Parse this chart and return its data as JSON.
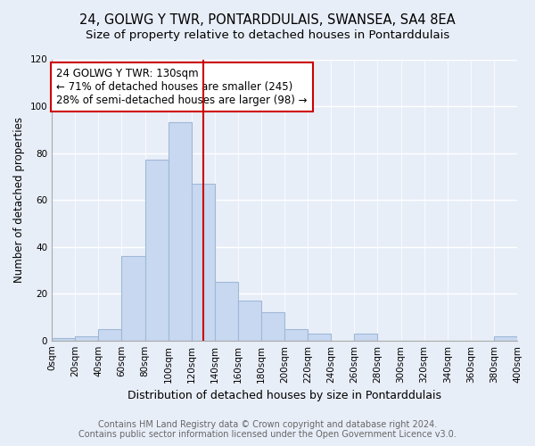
{
  "title": "24, GOLWG Y TWR, PONTARDDULAIS, SWANSEA, SA4 8EA",
  "subtitle": "Size of property relative to detached houses in Pontarddulais",
  "xlabel": "Distribution of detached houses by size in Pontarddulais",
  "ylabel": "Number of detached properties",
  "footnote1": "Contains HM Land Registry data © Crown copyright and database right 2024.",
  "footnote2": "Contains public sector information licensed under the Open Government Licence v3.0.",
  "bin_edges": [
    0,
    20,
    40,
    60,
    80,
    100,
    120,
    140,
    160,
    180,
    200,
    220,
    240,
    260,
    280,
    300,
    320,
    340,
    360,
    380,
    400
  ],
  "bar_heights": [
    1,
    2,
    5,
    36,
    77,
    93,
    67,
    25,
    17,
    12,
    5,
    3,
    0,
    3,
    0,
    0,
    0,
    0,
    0,
    2
  ],
  "bar_color": "#c8d8f0",
  "bar_edge_color": "#a0b8d8",
  "vline_x": 130,
  "vline_color": "#cc0000",
  "ylim": [
    0,
    120
  ],
  "xlim": [
    0,
    400
  ],
  "annotation_title": "24 GOLWG Y TWR: 130sqm",
  "annotation_line1": "← 71% of detached houses are smaller (245)",
  "annotation_line2": "28% of semi-detached houses are larger (98) →",
  "annotation_box_color": "white",
  "annotation_box_edge": "#cc0000",
  "background_color": "#e8eef8",
  "grid_color": "white",
  "title_fontsize": 10.5,
  "subtitle_fontsize": 9.5,
  "xlabel_fontsize": 9,
  "ylabel_fontsize": 8.5,
  "tick_fontsize": 7.5,
  "annotation_fontsize": 8.5,
  "footnote_fontsize": 7
}
